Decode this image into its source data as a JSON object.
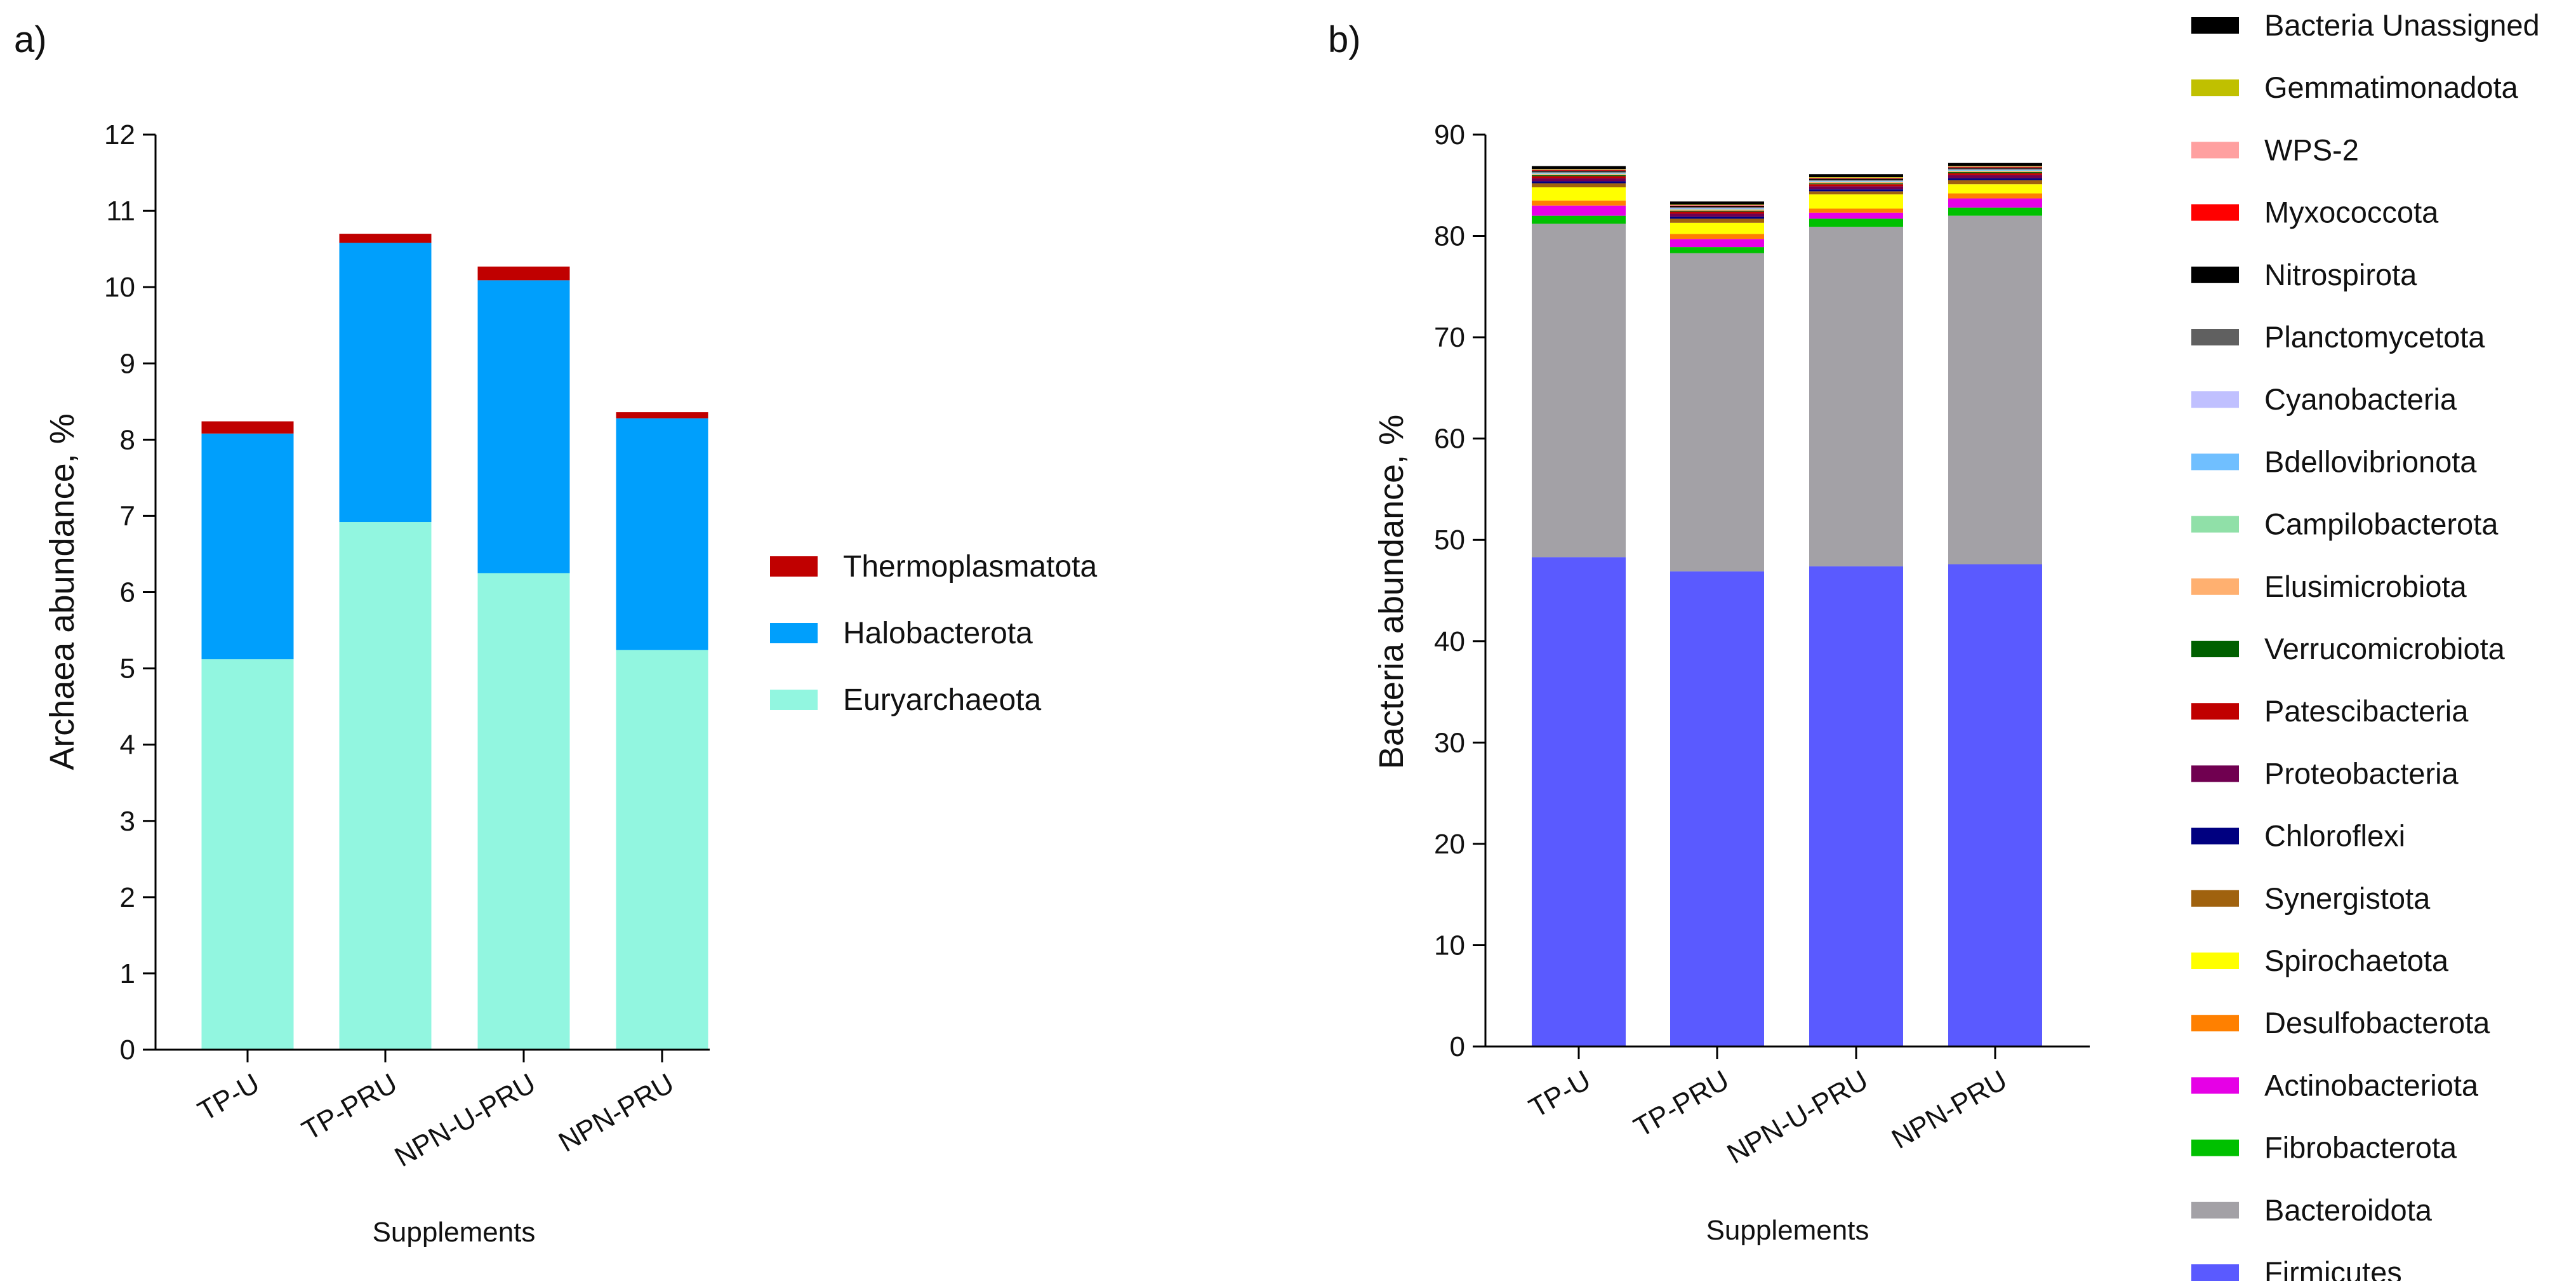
{
  "chart_data": [
    {
      "panel_label": "a)",
      "type": "bar",
      "stacked": true,
      "categories": [
        "TP-U",
        "TP-PRU",
        "NPN-U-PRU",
        "NPN-PRU"
      ],
      "xlabel": "Supplements",
      "ylabel": "Archaea abundance, %",
      "ylim": [
        0,
        12
      ],
      "yticks": [
        "0",
        "1",
        "2",
        "3",
        "4",
        "5",
        "6",
        "7",
        "8",
        "9",
        "10",
        "11",
        "12"
      ],
      "legend_position": "right",
      "legend": [
        "Thermoplasmatota",
        "Halobacterota",
        "Euryarchaeota"
      ],
      "series": [
        {
          "name": "Euryarchaeota",
          "color": "#92f6e0",
          "values": [
            5.12,
            6.92,
            6.25,
            5.24
          ]
        },
        {
          "name": "Halobacterota",
          "color": "#009ffc",
          "values": [
            2.96,
            3.66,
            3.84,
            3.04
          ]
        },
        {
          "name": "Thermoplasmatota",
          "color": "#c00000",
          "values": [
            0.16,
            0.12,
            0.18,
            0.08
          ]
        }
      ]
    },
    {
      "panel_label": "b)",
      "type": "bar",
      "stacked": true,
      "categories": [
        "TP-U",
        "TP-PRU",
        "NPN-U-PRU",
        "NPN-PRU"
      ],
      "xlabel": "Supplements",
      "ylabel": "Bacteria abundance, %",
      "ylim": [
        0,
        90
      ],
      "yticks": [
        "0",
        "10",
        "20",
        "30",
        "40",
        "50",
        "60",
        "70",
        "80",
        "90"
      ],
      "legend_position": "right",
      "legend": [
        "Bacteria Unassigned",
        "Gemmatimonadota",
        "WPS-2",
        "Myxococcota",
        "Nitrospirota",
        "Planctomycetota",
        "Cyanobacteria",
        "Bdellovibrionota",
        "Campilobacterota",
        "Elusimicrobiota",
        "Verrucomicrobiota",
        "Patescibacteria",
        "Proteobacteria",
        "Chloroflexi",
        "Synergistota",
        "Spirochaetota",
        "Desulfobacterota",
        "Actinobacteriota",
        "Fibrobacterota",
        "Bacteroidota",
        "Firmicutes"
      ],
      "series": [
        {
          "name": "Firmicutes",
          "color": "#5a5aff",
          "values": [
            48.3,
            46.9,
            47.4,
            47.6
          ]
        },
        {
          "name": "Bacteroidota",
          "color": "#a3a1a6",
          "values": [
            32.9,
            31.4,
            33.5,
            34.4
          ]
        },
        {
          "name": "Fibrobacterota",
          "color": "#00c000",
          "values": [
            0.8,
            0.6,
            0.8,
            0.8
          ]
        },
        {
          "name": "Actinobacteriota",
          "color": "#e600e6",
          "values": [
            1.0,
            0.8,
            0.6,
            0.9
          ]
        },
        {
          "name": "Desulfobacterota",
          "color": "#ff8000",
          "values": [
            0.5,
            0.5,
            0.4,
            0.5
          ]
        },
        {
          "name": "Spirochaetota",
          "color": "#ffff00",
          "values": [
            1.3,
            1.1,
            1.4,
            0.9
          ]
        },
        {
          "name": "Synergistota",
          "color": "#a0620e",
          "values": [
            0.4,
            0.4,
            0.3,
            0.4
          ]
        },
        {
          "name": "Chloroflexi",
          "color": "#000080",
          "values": [
            0.2,
            0.2,
            0.2,
            0.2
          ]
        },
        {
          "name": "Proteobacteria",
          "color": "#700050",
          "values": [
            0.3,
            0.3,
            0.3,
            0.3
          ]
        },
        {
          "name": "Patescibacteria",
          "color": "#c00000",
          "values": [
            0.2,
            0.2,
            0.2,
            0.2
          ]
        },
        {
          "name": "Verrucomicrobiota",
          "color": "#006000",
          "values": [
            0.1,
            0.1,
            0.1,
            0.1
          ]
        },
        {
          "name": "Elusimicrobiota",
          "color": "#ffb070",
          "values": [
            0.1,
            0.1,
            0.1,
            0.1
          ]
        },
        {
          "name": "Campilobacterota",
          "color": "#90e0a8",
          "values": [
            0.05,
            0.05,
            0.05,
            0.05
          ]
        },
        {
          "name": "Bdellovibrionota",
          "color": "#70bfff",
          "values": [
            0.05,
            0.05,
            0.05,
            0.05
          ]
        },
        {
          "name": "Cyanobacteria",
          "color": "#c0c0ff",
          "values": [
            0.05,
            0.05,
            0.05,
            0.05
          ]
        },
        {
          "name": "Planctomycetota",
          "color": "#606060",
          "values": [
            0.1,
            0.1,
            0.1,
            0.1
          ]
        },
        {
          "name": "Nitrospirota",
          "color": "#000000",
          "values": [
            0.1,
            0.1,
            0.1,
            0.1
          ]
        },
        {
          "name": "Myxococcota",
          "color": "#ff0000",
          "values": [
            0.05,
            0.05,
            0.05,
            0.05
          ]
        },
        {
          "name": "WPS-2",
          "color": "#ffa0a0",
          "values": [
            0.05,
            0.05,
            0.05,
            0.05
          ]
        },
        {
          "name": "Gemmatimonadota",
          "color": "#c0c000",
          "values": [
            0.05,
            0.05,
            0.05,
            0.05
          ]
        },
        {
          "name": "Bacteria Unassigned",
          "color": "#000000",
          "values": [
            0.3,
            0.3,
            0.3,
            0.3
          ]
        }
      ]
    }
  ]
}
